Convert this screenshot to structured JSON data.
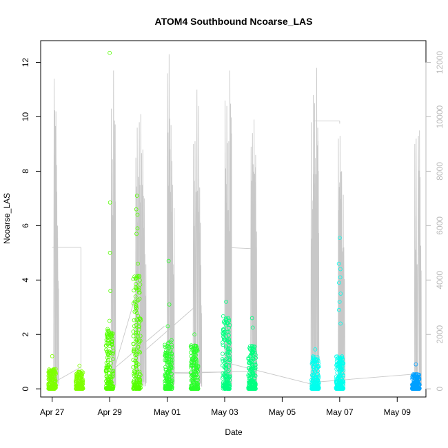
{
  "chart_data": {
    "type": "scatter",
    "title": "ATOM4 Southbound Ncoarse_LAS",
    "xlabel": "Date",
    "ylabel": "Ncoarse_LAS",
    "x_ticks": [
      "Apr 27",
      "Apr 29",
      "May 01",
      "May 03",
      "May 05",
      "May 07",
      "May 09"
    ],
    "x_tick_day_index": [
      0,
      2,
      4,
      6,
      8,
      10,
      12
    ],
    "xlim_days": [
      -0.4,
      13.0
    ],
    "y_ticks": [
      "0",
      "2",
      "4",
      "6",
      "8",
      "10",
      "12"
    ],
    "ylim": [
      -0.3,
      12.8
    ],
    "y2_ticks": [
      "0",
      "2000",
      "4000",
      "6000",
      "8000",
      "10000",
      "12000"
    ],
    "y2lim": [
      -300,
      12800
    ],
    "secondary_axis_color": "#bbbbbb",
    "series": [
      {
        "kind": "points",
        "color": "#7fff00",
        "clusters": [
          {
            "day": 0.0,
            "max": 1.2,
            "hi": 0.75
          },
          {
            "day": 0.95,
            "max": 0.85,
            "hi": 0.65
          }
        ]
      },
      {
        "kind": "points",
        "color": "#55ff00",
        "clusters": [
          {
            "day": 2.0,
            "max": 12.35,
            "hi": 2.2,
            "outliers": [
              6.85,
              5.0,
              3.6,
              2.5
            ]
          },
          {
            "day": 2.95,
            "max": 7.1,
            "hi": 4.2,
            "outliers": [
              6.6,
              6.4,
              5.9,
              5.7,
              4.6
            ]
          }
        ]
      },
      {
        "kind": "points",
        "color": "#2bff2b",
        "clusters": [
          {
            "day": 4.05,
            "max": 4.7,
            "hi": 1.8,
            "outliers": [
              3.1,
              2.3
            ]
          },
          {
            "day": 4.95,
            "max": 2.0,
            "hi": 1.6
          }
        ]
      },
      {
        "kind": "points",
        "color": "#00ff80",
        "clusters": [
          {
            "day": 6.05,
            "max": 3.2,
            "hi": 2.7
          },
          {
            "day": 6.95,
            "max": 2.6,
            "hi": 1.6,
            "outliers": [
              2.25
            ]
          }
        ]
      },
      {
        "kind": "points",
        "color": "#00ffee",
        "clusters": [
          {
            "day": 9.15,
            "max": 1.45,
            "hi": 1.2
          },
          {
            "day": 10.0,
            "max": 5.55,
            "hi": 1.2,
            "outliers": [
              4.6,
              4.4,
              4.1,
              3.9,
              3.5,
              3.2,
              2.9,
              2.4
            ]
          }
        ]
      },
      {
        "kind": "points",
        "color": "#00a0ff",
        "clusters": [
          {
            "day": 12.65,
            "max": 0.9,
            "hi": 0.55
          }
        ]
      }
    ],
    "line_series": {
      "color": "#c8c8c8",
      "bursts": [
        {
          "day": 0.05,
          "peaks": [
            11400,
            10200,
            6000
          ]
        },
        {
          "day": 2.05,
          "peaks": [
            10300,
            11700,
            9000
          ]
        },
        {
          "day": 2.9,
          "peaks": [
            8500,
            9600,
            9800,
            10100,
            8800,
            7000
          ]
        },
        {
          "day": 4.0,
          "peaks": [
            11600,
            12300,
            9700,
            7500
          ]
        },
        {
          "day": 4.9,
          "peaks": [
            9000,
            9100,
            11000,
            10400,
            6000
          ]
        },
        {
          "day": 6.0,
          "peaks": [
            10600,
            10400,
            9100,
            11700
          ]
        },
        {
          "day": 6.9,
          "peaks": [
            8900,
            9400,
            9900,
            8600
          ]
        },
        {
          "day": 9.0,
          "peaks": [
            9800,
            10800,
            10500,
            11800,
            9600
          ]
        },
        {
          "day": 9.95,
          "peaks": [
            9200,
            9300,
            8000,
            5200
          ]
        },
        {
          "day": 12.6,
          "peaks": [
            9000,
            9200,
            9300,
            9500
          ]
        }
      ],
      "connectors": [
        {
          "from": [
            0.0,
            5200
          ],
          "to": [
            1.0,
            5200
          ]
        },
        {
          "from": [
            1.0,
            5200
          ],
          "to": [
            1.0,
            100
          ]
        },
        {
          "from": [
            0.0,
            200
          ],
          "to": [
            1.0,
            800
          ]
        },
        {
          "from": [
            2.0,
            150
          ],
          "to": [
            2.95,
            3600
          ]
        },
        {
          "from": [
            2.1,
            700
          ],
          "to": [
            3.9,
            2300
          ]
        },
        {
          "from": [
            3.0,
            1200
          ],
          "to": [
            4.95,
            3000
          ]
        },
        {
          "from": [
            4.1,
            600
          ],
          "to": [
            6.0,
            620
          ]
        },
        {
          "from": [
            6.0,
            5200
          ],
          "to": [
            7.0,
            5150
          ]
        },
        {
          "from": [
            6.1,
            950
          ],
          "to": [
            9.1,
            150
          ]
        },
        {
          "from": [
            6.9,
            650
          ],
          "to": [
            4.0,
            550
          ]
        },
        {
          "from": [
            9.1,
            9850
          ],
          "to": [
            10.0,
            9850
          ]
        },
        {
          "from": [
            10.0,
            9850
          ],
          "to": [
            10.0,
            9750
          ]
        },
        {
          "from": [
            9.2,
            250
          ],
          "to": [
            12.7,
            550
          ]
        }
      ]
    }
  }
}
